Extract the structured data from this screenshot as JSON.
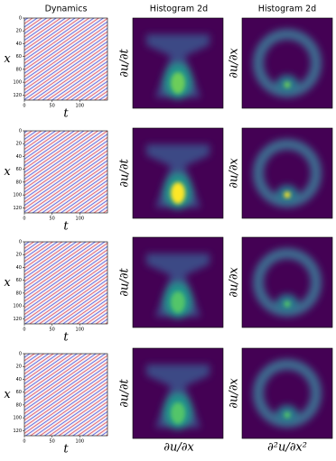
{
  "titles": [
    "Dynamics",
    "Histogram 2d",
    "Histogram 2d"
  ],
  "dynamics": {
    "xlabel": "t",
    "ylabel": "x",
    "xlim": [
      0,
      150
    ],
    "ylim": [
      0,
      128
    ],
    "xticks": [
      0,
      50,
      100
    ],
    "yticks": [
      0,
      20,
      40,
      60,
      80,
      100,
      120
    ]
  },
  "hist_ylabels": [
    "∂u/∂t",
    "∂u/∂x"
  ],
  "hist_xlabels": [
    "∂u/∂x",
    "∂²u/∂x²"
  ]
}
